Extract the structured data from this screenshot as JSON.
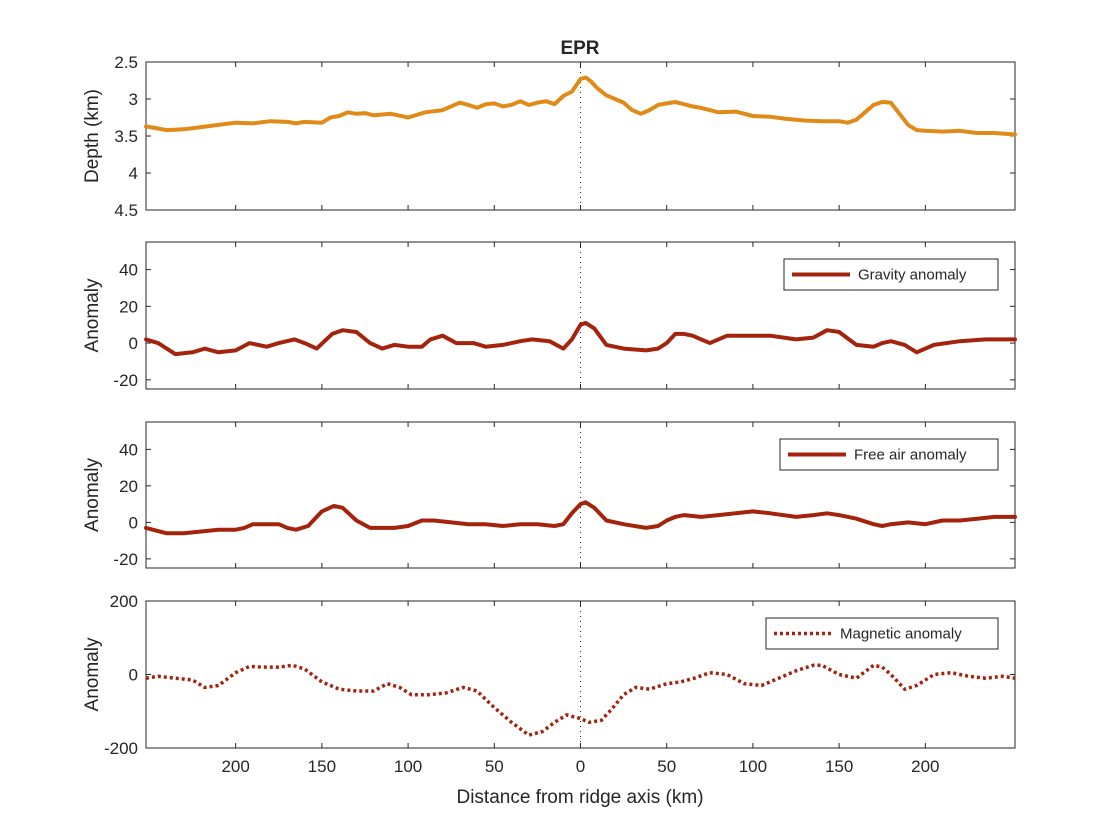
{
  "figure": {
    "title": "EPR",
    "xlabel": "Distance from ridge axis (km)",
    "x_tick_labels": [
      "200",
      "150",
      "100",
      "50",
      "0",
      "50",
      "100",
      "150",
      "200"
    ]
  },
  "chart_data": [
    {
      "type": "line",
      "ylabel": "Depth (km)",
      "y_reversed": true,
      "xlim": [
        -252,
        252
      ],
      "ylim": [
        2.5,
        4.5
      ],
      "yticks": [
        2.5,
        3,
        3.5,
        4,
        4.5
      ],
      "y_tick_labels": [
        "2.5",
        "3",
        "3.5",
        "4",
        "4.5"
      ],
      "legend": null,
      "series": [
        {
          "color": "#e08a17",
          "style": "solid",
          "x": [
            -252,
            -240,
            -230,
            -220,
            -210,
            -200,
            -190,
            -180,
            -170,
            -165,
            -160,
            -150,
            -145,
            -140,
            -135,
            -130,
            -125,
            -120,
            -110,
            -100,
            -90,
            -80,
            -70,
            -65,
            -60,
            -55,
            -50,
            -45,
            -40,
            -35,
            -30,
            -25,
            -20,
            -15,
            -10,
            -5,
            -2,
            0,
            3,
            6,
            10,
            15,
            20,
            25,
            30,
            35,
            40,
            45,
            50,
            55,
            60,
            65,
            70,
            80,
            90,
            100,
            110,
            120,
            130,
            140,
            150,
            155,
            160,
            165,
            170,
            175,
            180,
            185,
            190,
            195,
            200,
            210,
            220,
            230,
            240,
            252
          ],
          "y": [
            3.37,
            3.42,
            3.41,
            3.38,
            3.35,
            3.32,
            3.33,
            3.3,
            3.31,
            3.33,
            3.31,
            3.32,
            3.25,
            3.23,
            3.18,
            3.2,
            3.19,
            3.22,
            3.2,
            3.25,
            3.18,
            3.15,
            3.05,
            3.08,
            3.12,
            3.07,
            3.06,
            3.1,
            3.08,
            3.03,
            3.08,
            3.05,
            3.03,
            3.07,
            2.96,
            2.9,
            2.8,
            2.73,
            2.71,
            2.76,
            2.86,
            2.95,
            3.0,
            3.05,
            3.15,
            3.2,
            3.15,
            3.08,
            3.06,
            3.04,
            3.07,
            3.1,
            3.12,
            3.18,
            3.17,
            3.23,
            3.24,
            3.27,
            3.29,
            3.3,
            3.3,
            3.32,
            3.28,
            3.18,
            3.08,
            3.04,
            3.05,
            3.2,
            3.35,
            3.42,
            3.43,
            3.44,
            3.43,
            3.46,
            3.46,
            3.48
          ]
        }
      ]
    },
    {
      "type": "line",
      "ylabel": "Anomaly",
      "xlim": [
        -252,
        252
      ],
      "ylim": [
        -25,
        55
      ],
      "yticks": [
        40,
        20,
        0,
        -20
      ],
      "y_tick_labels": [
        "40",
        "20",
        "0",
        "-20"
      ],
      "legend": {
        "position": "top-right"
      },
      "series": [
        {
          "name": "Gravity anomaly",
          "color": "#a3230c",
          "style": "solid",
          "x": [
            -252,
            -245,
            -235,
            -225,
            -218,
            -210,
            -200,
            -192,
            -182,
            -175,
            -166,
            -160,
            -153,
            -144,
            -138,
            -130,
            -122,
            -115,
            -108,
            -100,
            -92,
            -87,
            -80,
            -72,
            -62,
            -55,
            -45,
            -40,
            -35,
            -28,
            -18,
            -10,
            -5,
            0,
            3,
            8,
            15,
            25,
            38,
            45,
            50,
            55,
            60,
            65,
            70,
            75,
            80,
            85,
            90,
            100,
            110,
            125,
            135,
            143,
            150,
            160,
            170,
            175,
            180,
            188,
            195,
            205,
            220,
            235,
            245,
            252
          ],
          "y": [
            2,
            0,
            -6,
            -5,
            -3,
            -5,
            -4,
            0,
            -2,
            0,
            2,
            0,
            -3,
            5,
            7,
            6,
            0,
            -3,
            -1,
            -2,
            -2,
            2,
            4,
            0,
            0,
            -2,
            -1,
            0,
            1,
            2,
            1,
            -3,
            2,
            10,
            11,
            8,
            -1,
            -3,
            -4,
            -3,
            0,
            5,
            5,
            4,
            2,
            0,
            2,
            4,
            4,
            4,
            4,
            2,
            3,
            7,
            6,
            -1,
            -2,
            0,
            1,
            -1,
            -5,
            -1,
            1,
            2,
            2,
            2
          ]
        }
      ]
    },
    {
      "type": "line",
      "ylabel": "Anomaly",
      "xlim": [
        -252,
        252
      ],
      "ylim": [
        -25,
        55
      ],
      "yticks": [
        40,
        20,
        0,
        -20
      ],
      "y_tick_labels": [
        "40",
        "20",
        "0",
        "-20"
      ],
      "legend": {
        "position": "top-right"
      },
      "series": [
        {
          "name": "Free air anomaly",
          "color": "#a3230c",
          "style": "solid",
          "x": [
            -252,
            -240,
            -230,
            -220,
            -210,
            -200,
            -195,
            -190,
            -180,
            -175,
            -170,
            -165,
            -158,
            -150,
            -143,
            -138,
            -130,
            -122,
            -115,
            -108,
            -100,
            -92,
            -85,
            -75,
            -65,
            -55,
            -45,
            -35,
            -25,
            -15,
            -10,
            -5,
            0,
            3,
            8,
            15,
            25,
            38,
            45,
            50,
            55,
            60,
            70,
            80,
            90,
            100,
            110,
            125,
            135,
            143,
            150,
            160,
            170,
            175,
            180,
            190,
            200,
            210,
            220,
            230,
            240,
            252
          ],
          "y": [
            -3,
            -6,
            -6,
            -5,
            -4,
            -4,
            -3,
            -1,
            -1,
            -1,
            -3,
            -4,
            -2,
            6,
            9,
            8,
            1,
            -3,
            -3,
            -3,
            -2,
            1,
            1,
            0,
            -1,
            -1,
            -2,
            -1,
            -1,
            -2,
            -1,
            5,
            10,
            11,
            8,
            1,
            -1,
            -3,
            -2,
            1,
            3,
            4,
            3,
            4,
            5,
            6,
            5,
            3,
            4,
            5,
            4,
            2,
            -1,
            -2,
            -1,
            0,
            -1,
            1,
            1,
            2,
            3,
            3
          ]
        }
      ]
    },
    {
      "type": "line",
      "ylabel": "Anomaly",
      "xlim": [
        -252,
        252
      ],
      "ylim": [
        -200,
        200
      ],
      "yticks": [
        200,
        0,
        -200
      ],
      "y_tick_labels": [
        "200",
        "0",
        "-200"
      ],
      "legend": {
        "position": "top-right"
      },
      "series": [
        {
          "name": "Magnetic anomaly",
          "color": "#a3230c",
          "style": "dotted",
          "x": [
            -252,
            -245,
            -235,
            -225,
            -218,
            -210,
            -200,
            -192,
            -185,
            -175,
            -167,
            -160,
            -150,
            -140,
            -130,
            -120,
            -112,
            -105,
            -98,
            -88,
            -78,
            -68,
            -60,
            -50,
            -40,
            -30,
            -22,
            -15,
            -8,
            0,
            5,
            12,
            18,
            25,
            32,
            40,
            50,
            58,
            66,
            75,
            85,
            95,
            105,
            115,
            125,
            135,
            140,
            150,
            160,
            170,
            175,
            180,
            188,
            195,
            205,
            215,
            225,
            235,
            245,
            252
          ],
          "y": [
            -10,
            -5,
            -10,
            -15,
            -35,
            -30,
            5,
            22,
            20,
            20,
            25,
            15,
            -20,
            -40,
            -45,
            -45,
            -25,
            -35,
            -55,
            -55,
            -50,
            -35,
            -45,
            -90,
            -130,
            -165,
            -155,
            -130,
            -110,
            -120,
            -130,
            -125,
            -95,
            -55,
            -35,
            -40,
            -25,
            -20,
            -10,
            5,
            0,
            -25,
            -30,
            -10,
            10,
            25,
            25,
            0,
            -10,
            25,
            20,
            0,
            -40,
            -30,
            0,
            5,
            -5,
            -10,
            -5,
            -10
          ]
        }
      ]
    }
  ]
}
